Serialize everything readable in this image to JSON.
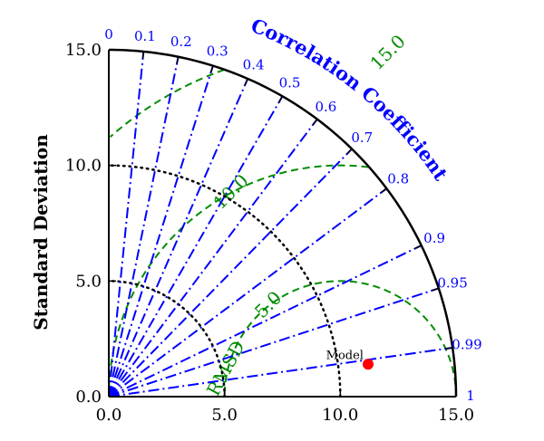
{
  "chart_data": {
    "type": "scatter",
    "subtype": "taylor-diagram",
    "title": "",
    "ylabel": "Standard Deviation",
    "arc_label": "Correlation Coefficient",
    "rmsd_label": "RMSD",
    "sd_max": 15.0,
    "sd_ticks": [
      0.0,
      5.0,
      10.0,
      15.0
    ],
    "sd_tick_labels": [
      "0.0",
      "5.0",
      "10.0",
      "15.0"
    ],
    "correlation_ticks": [
      0,
      0.1,
      0.2,
      0.3,
      0.4,
      0.5,
      0.6,
      0.7,
      0.8,
      0.9,
      0.95,
      0.99,
      1
    ],
    "correlation_tick_labels": [
      "0",
      "0.1",
      "0.2",
      "0.3",
      "0.4",
      "0.5",
      "0.6",
      "0.7",
      "0.8",
      "0.9",
      "0.95",
      "0.99",
      "1"
    ],
    "reference_sd": 10.0,
    "reference_arcs": [
      5.0,
      10.0
    ],
    "rmsd_contours": [
      5.0,
      10.0,
      15.0
    ],
    "rmsd_contour_labels": [
      "5.0",
      "10.0",
      "15.0"
    ],
    "points": [
      {
        "label": "Model",
        "x": 11.2,
        "y": 1.4,
        "color": "#ff0000"
      }
    ],
    "colors": {
      "axis": "#000000",
      "correlation": "#0000ff",
      "rmsd": "#008c00",
      "reference": "#000000"
    },
    "grid": true
  }
}
